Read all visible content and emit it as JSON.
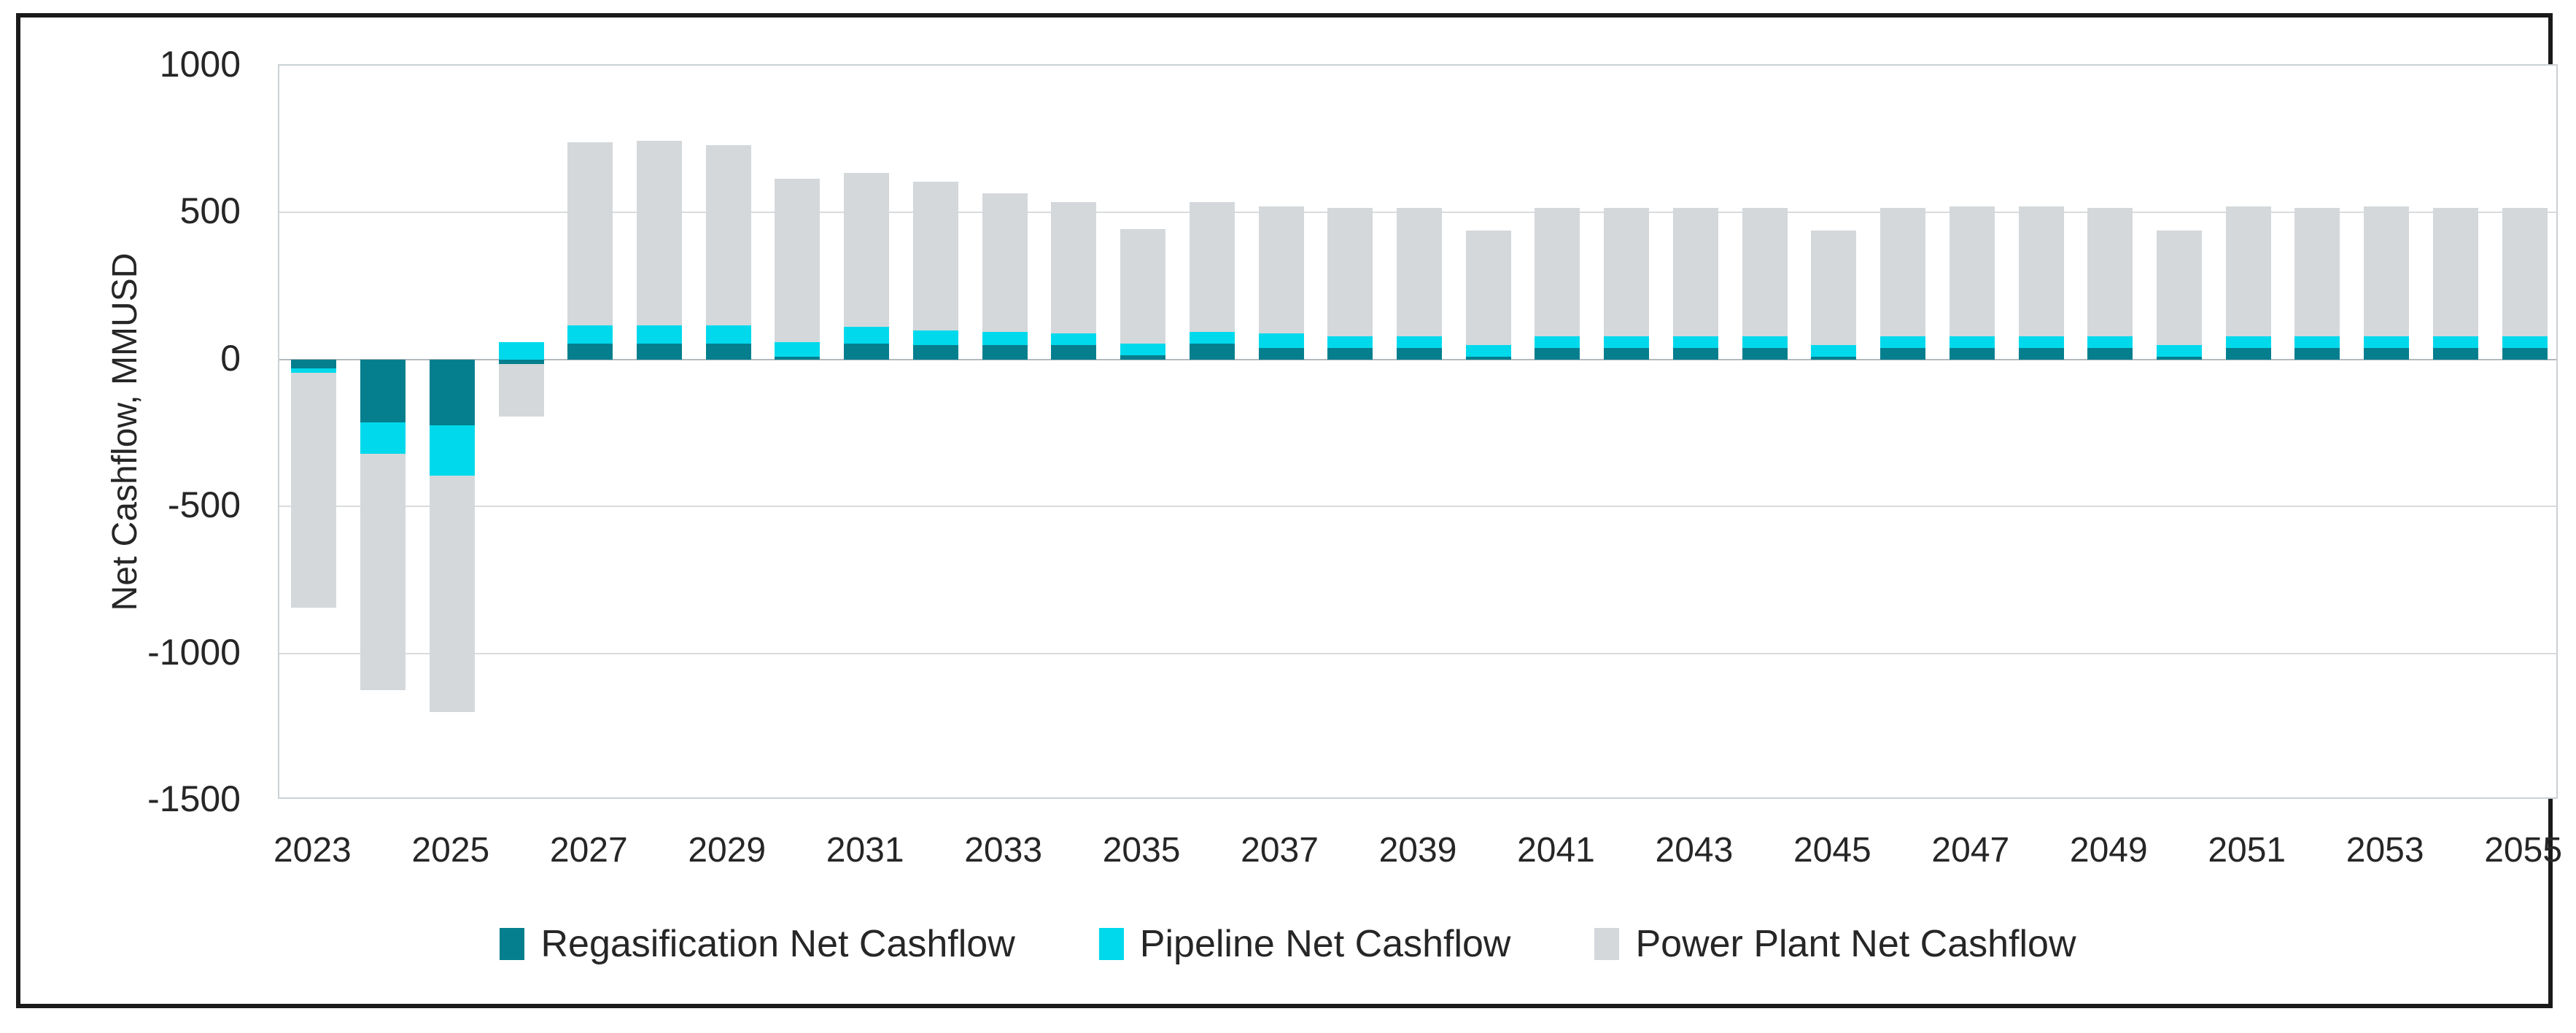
{
  "chart_data": {
    "type": "bar",
    "stacked": true,
    "title": "",
    "xlabel": "",
    "ylabel": "Net Cashflow, MMUSD",
    "ylim": [
      -1500,
      1000
    ],
    "yticks": [
      1000,
      500,
      0,
      -500,
      -1000,
      -1500
    ],
    "xticks": [
      2023,
      2025,
      2027,
      2029,
      2031,
      2033,
      2035,
      2037,
      2039,
      2041,
      2043,
      2045,
      2047,
      2049,
      2051,
      2053,
      2055
    ],
    "grid": "horizontal",
    "legend_position": "bottom-center",
    "background_color": "#ffffff",
    "gridline_color": "#d9dcde",
    "zero_line_color": "#b3b9bc",
    "text_color": "#262626",
    "categories": [
      2023,
      2024,
      2025,
      2026,
      2027,
      2028,
      2029,
      2030,
      2031,
      2032,
      2033,
      2034,
      2035,
      2036,
      2037,
      2038,
      2039,
      2040,
      2041,
      2042,
      2043,
      2044,
      2045,
      2046,
      2047,
      2048,
      2049,
      2050,
      2051,
      2052,
      2053,
      2054,
      2055
    ],
    "series": [
      {
        "name": "Regasification Net Cashflow",
        "key": "regasification",
        "color": "#057f8e",
        "values": [
          -30,
          -215,
          -225,
          -15,
          55,
          55,
          55,
          10,
          55,
          50,
          50,
          50,
          15,
          55,
          40,
          40,
          40,
          10,
          40,
          40,
          40,
          40,
          10,
          40,
          40,
          40,
          40,
          10,
          40,
          40,
          40,
          40,
          40
        ]
      },
      {
        "name": "Pipeline Net Cashflow",
        "key": "pipeline",
        "color": "#00d9ec",
        "values": [
          -15,
          -105,
          -170,
          60,
          60,
          60,
          60,
          50,
          55,
          50,
          45,
          40,
          40,
          40,
          50,
          40,
          40,
          40,
          40,
          40,
          40,
          40,
          40,
          40,
          40,
          40,
          40,
          40,
          40,
          40,
          40,
          40,
          40
        ]
      },
      {
        "name": "Power Plant Net Cashflow",
        "key": "power-plant",
        "color": "#d4d8db",
        "values": [
          -800,
          -805,
          -805,
          -180,
          625,
          630,
          615,
          555,
          525,
          505,
          470,
          445,
          390,
          440,
          430,
          435,
          435,
          390,
          435,
          435,
          435,
          435,
          390,
          435,
          440,
          440,
          435,
          390,
          440,
          435,
          440,
          435,
          435
        ]
      }
    ]
  }
}
